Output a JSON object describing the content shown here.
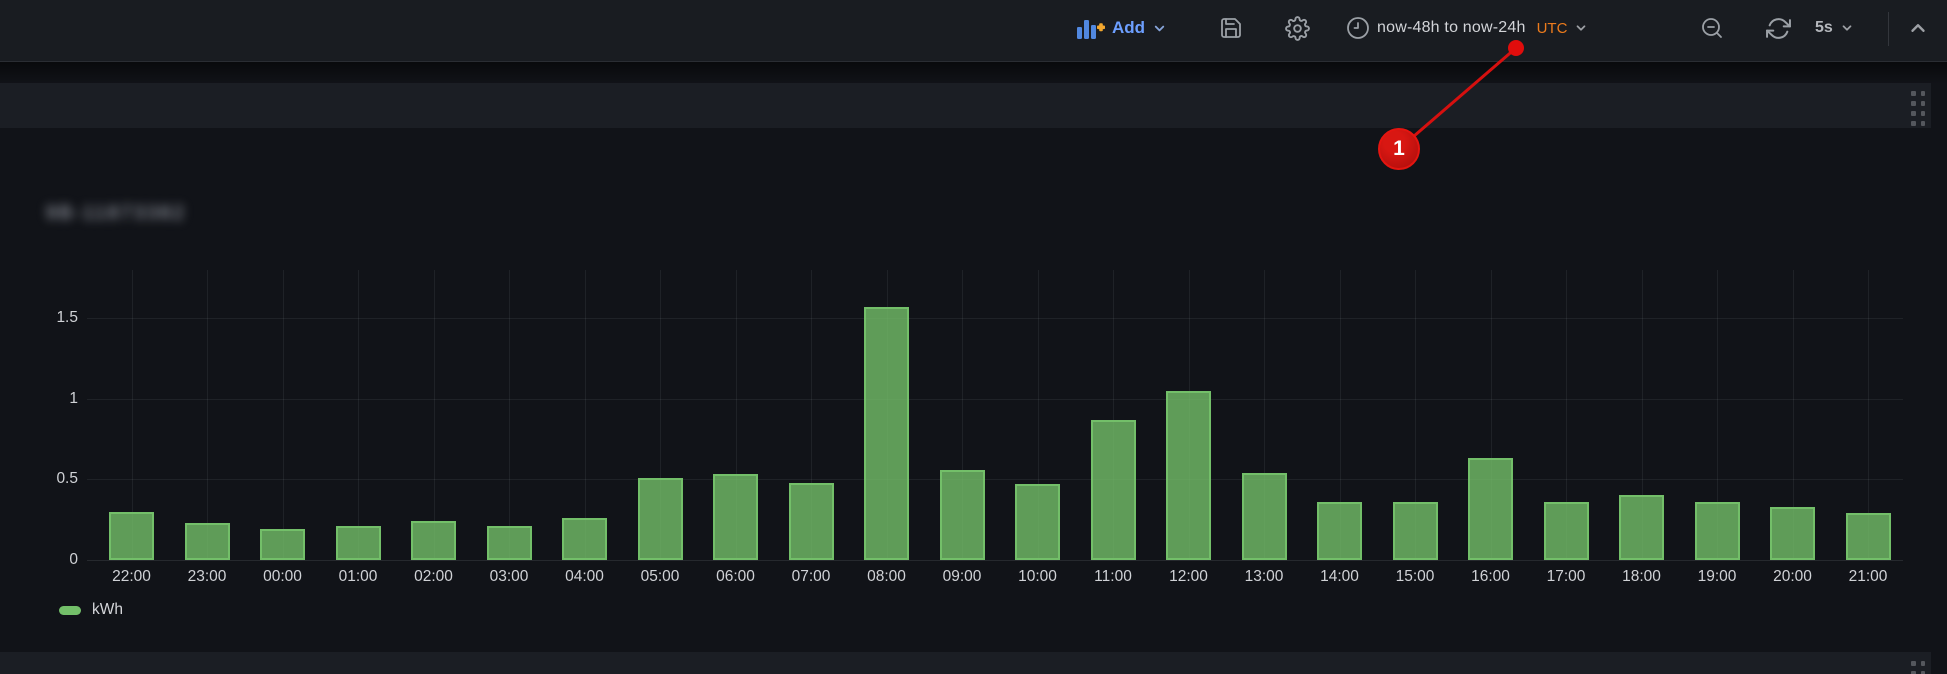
{
  "toolbar": {
    "add_label": "Add",
    "time_range": "now-48h to now-24h",
    "timezone": "UTC",
    "refresh_interval": "5s"
  },
  "annotation": {
    "label": "1"
  },
  "panel": {
    "title_redacted": true,
    "title_blurred_text": "9B-11873382"
  },
  "legend": {
    "series_label": "kWh"
  },
  "chart_data": {
    "type": "bar",
    "title": "",
    "xlabel": "",
    "ylabel": "",
    "categories": [
      "22:00",
      "23:00",
      "00:00",
      "01:00",
      "02:00",
      "03:00",
      "04:00",
      "05:00",
      "06:00",
      "07:00",
      "08:00",
      "09:00",
      "10:00",
      "11:00",
      "12:00",
      "13:00",
      "14:00",
      "15:00",
      "16:00",
      "17:00",
      "18:00",
      "19:00",
      "20:00",
      "21:00"
    ],
    "values": [
      0.3,
      0.23,
      0.19,
      0.21,
      0.24,
      0.21,
      0.26,
      0.51,
      0.53,
      0.48,
      1.57,
      0.56,
      0.47,
      0.87,
      1.05,
      0.54,
      0.36,
      0.36,
      0.63,
      0.36,
      0.4,
      0.36,
      0.33,
      0.29
    ],
    "series": [
      {
        "name": "kWh",
        "color": "#73bf69"
      }
    ],
    "yticks": [
      0,
      0.5,
      1,
      1.5
    ],
    "ylim": [
      0,
      1.8
    ],
    "grid": true,
    "legend_position": "bottom-left"
  },
  "colors": {
    "page_bg": "#111318",
    "toolbar_bg": "#191c21",
    "band_bg": "#1b1e24",
    "bar_green": "#73bf69",
    "utc_orange": "#ec7b1c",
    "add_blue": "#6d9fff",
    "annotation_red": "#d81712"
  }
}
